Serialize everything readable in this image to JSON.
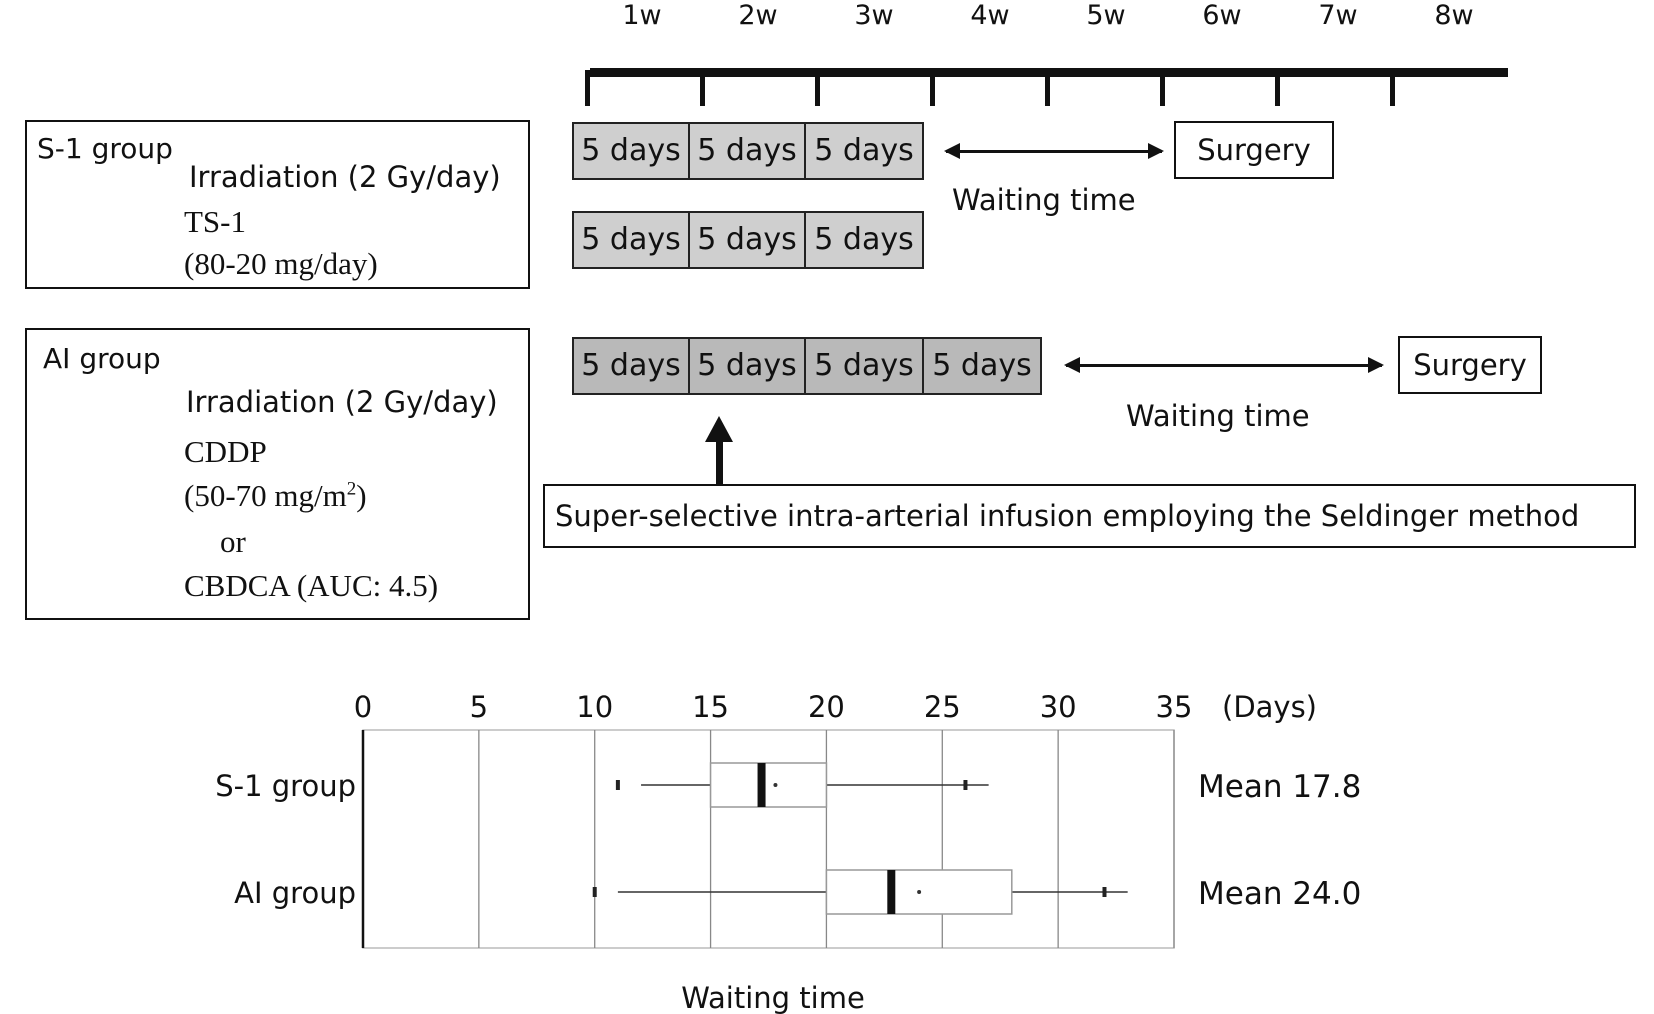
{
  "timeline": {
    "weeks": [
      "1w",
      "2w",
      "3w",
      "4w",
      "5w",
      "6w",
      "7w",
      "8w"
    ]
  },
  "s1": {
    "title": "S-1 group",
    "lines": [
      "Irradiation (2 Gy/day)",
      "TS-1",
      "(80-20 mg/day)"
    ],
    "irradiation_blocks": [
      "5 days",
      "5 days",
      "5 days"
    ],
    "drug_blocks": [
      "5 days",
      "5 days",
      "5 days"
    ],
    "waiting_label": "Waiting time",
    "surgery_label": "Surgery"
  },
  "ai": {
    "title": "AI group",
    "irradiation": "Irradiation (2 Gy/day)",
    "drug1": "CDDP",
    "dose1_prefix": "(50-70 mg/m",
    "dose1_sup": "2",
    "dose1_suffix": ")",
    "or": "or",
    "drug2": "CBDCA  (AUC: 4.5)",
    "blocks": [
      "5 days",
      "5 days",
      "5 days",
      "5 days"
    ],
    "waiting_label": "Waiting time",
    "surgery_label": "Surgery",
    "note": "Super-selective intra-arterial infusion employing the Seldinger method"
  },
  "chart_data": {
    "type": "box",
    "xlabel": "Waiting time",
    "unit": "(Days)",
    "xlim": [
      0,
      35
    ],
    "xticks": [
      0,
      5,
      10,
      15,
      20,
      25,
      30,
      35
    ],
    "grid": true,
    "series": [
      {
        "name": "S-1 group",
        "whisker_low": 12,
        "q1": 15,
        "median": 17.2,
        "q3": 20,
        "whisker_high": 27,
        "mean": 17.8,
        "outliers": [
          11,
          26
        ],
        "mean_label": "Mean 17.8"
      },
      {
        "name": "AI group",
        "whisker_low": 11,
        "q1": 20,
        "median": 22.8,
        "q3": 28,
        "whisker_high": 33,
        "mean": 24.0,
        "outliers": [
          10,
          32
        ],
        "mean_label": "Mean 24.0"
      }
    ]
  },
  "colors": {
    "block_fill": "#cfcfcf",
    "block_fill_ai": "#b9b9b9",
    "line": "#111111",
    "grid": "#888888"
  }
}
